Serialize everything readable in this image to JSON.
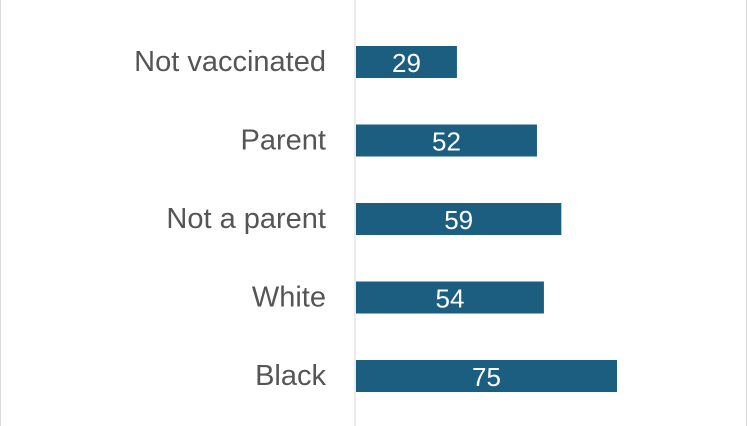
{
  "chart_data": {
    "type": "bar",
    "orientation": "horizontal",
    "categories": [
      "Not vaccinated",
      "Parent",
      "Not a parent",
      "White",
      "Black"
    ],
    "values": [
      29,
      52,
      59,
      54,
      75
    ],
    "value_labels": [
      "29",
      "52",
      "59",
      "54",
      "75"
    ],
    "bar_color": "#1b5e80",
    "label_color": "#555555",
    "value_label_color": "#ffffff",
    "axis_color": "#d9d9d9",
    "xlim": [
      0,
      100
    ],
    "grid": false,
    "legend": "none"
  }
}
